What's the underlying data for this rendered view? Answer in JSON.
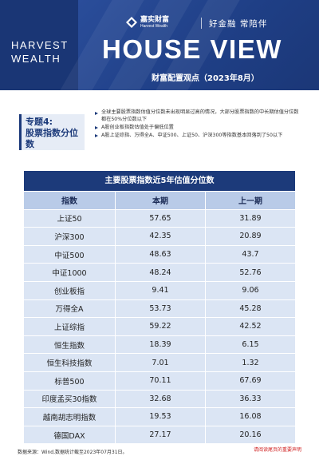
{
  "header": {
    "brand_en_line1": "HARVEST",
    "brand_en_line2": "WEALTH",
    "logo_cn": "嘉实财富",
    "logo_en": "Harvest Wealth",
    "slogan": "好金融  常陪伴",
    "title": "HOUSE VIEW",
    "subtitle": "财富配置观点（2023年8月）"
  },
  "topic": {
    "line1": "专题4:",
    "line2": "股票指数分位",
    "line3": "数",
    "bullets": [
      "全球主要股票指数估值分位数未出现明显过高的情况，大部分股票指数的中长期估值分位数都在50%分位数以下",
      "A股创业板指数估值处于偏低位置",
      "A股上证综指、万得全A、中证500、上证50、沪深300等指数基本回落到了50以下"
    ]
  },
  "table": {
    "title": "主要股票指数近5年估值分位数",
    "headers": [
      "指数",
      "本期",
      "上一期"
    ],
    "rows": [
      [
        "上证50",
        "57.65",
        "31.89"
      ],
      [
        "沪深300",
        "42.35",
        "20.89"
      ],
      [
        "中证500",
        "48.63",
        "43.7"
      ],
      [
        "中证1000",
        "48.24",
        "52.76"
      ],
      [
        "创业板指",
        "9.41",
        "9.06"
      ],
      [
        "万得全A",
        "53.73",
        "45.28"
      ],
      [
        "上证综指",
        "59.22",
        "42.52"
      ],
      [
        "恒生指数",
        "18.39",
        "6.15"
      ],
      [
        "恒生科技指数",
        "7.01",
        "1.32"
      ],
      [
        "标普500",
        "70.11",
        "67.69"
      ],
      [
        "印度孟买30指数",
        "32.68",
        "36.33"
      ],
      [
        "越南胡志明指数",
        "19.53",
        "16.08"
      ],
      [
        "德国DAX",
        "27.17",
        "20.16"
      ]
    ]
  },
  "footer": {
    "source": "数据来源：Wind,数据统计截至2023年07月31日。",
    "disclaimer": "请阅读尾页的重要声明"
  }
}
